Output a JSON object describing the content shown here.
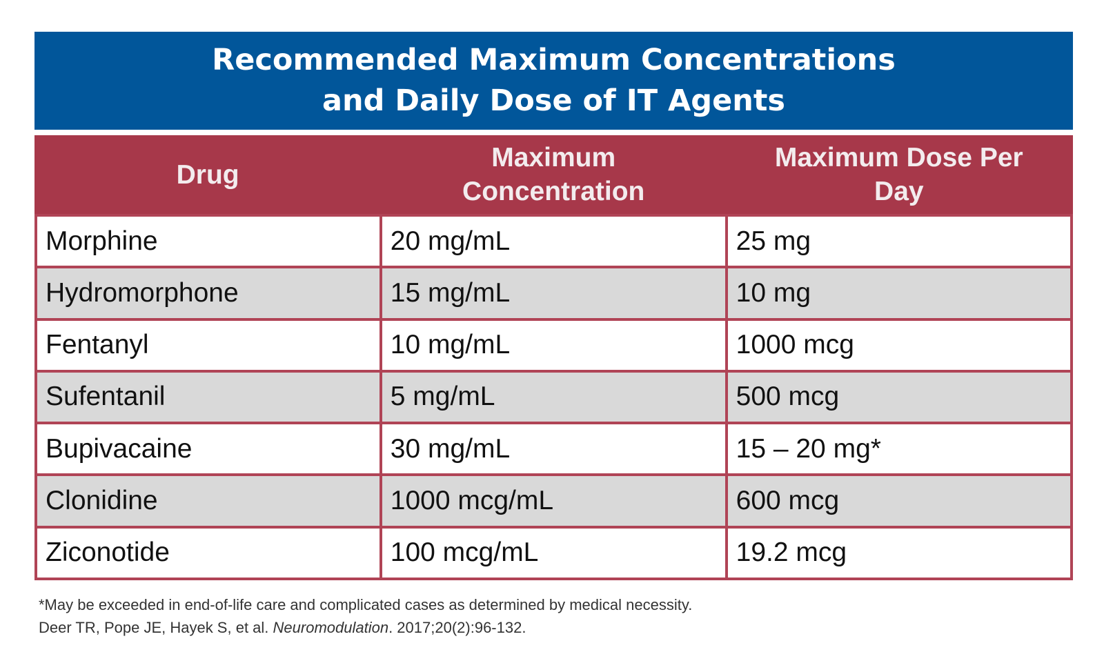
{
  "title": {
    "line1": "Recommended Maximum Concentrations",
    "line2": "and Daily Dose of IT Agents"
  },
  "table": {
    "headers": {
      "drug": "Drug",
      "concentration_line1": "Maximum",
      "concentration_line2": "Concentration",
      "dose_line1": "Maximum Dose Per",
      "dose_line2": "Day"
    },
    "rows": [
      {
        "drug": "Morphine",
        "concentration": "20 mg/mL",
        "dose": "25 mg"
      },
      {
        "drug": "Hydromorphone",
        "concentration": "15 mg/mL",
        "dose": "10 mg"
      },
      {
        "drug": "Fentanyl",
        "concentration": "10 mg/mL",
        "dose": "1000 mcg"
      },
      {
        "drug": "Sufentanil",
        "concentration": "5 mg/mL",
        "dose": "500 mcg"
      },
      {
        "drug": "Bupivacaine",
        "concentration": "30 mg/mL",
        "dose": "15 – 20 mg*"
      },
      {
        "drug": "Clonidine",
        "concentration": "1000 mcg/mL",
        "dose": "600 mcg"
      },
      {
        "drug": "Ziconotide",
        "concentration": "100 mcg/mL",
        "dose": "19.2 mcg"
      }
    ]
  },
  "footnote": {
    "note": "*May be exceeded in end-of-life care and complicated cases as determined by medical necessity.",
    "citation_authors": "Deer TR, Pope JE, Hayek S, et al. ",
    "citation_journal": "Neuromodulation",
    "citation_details": ". 2017;20(2):96-132."
  },
  "colors": {
    "banner": "#01569a",
    "header": "#a7384a",
    "row_alt": "#d9d9d9"
  }
}
